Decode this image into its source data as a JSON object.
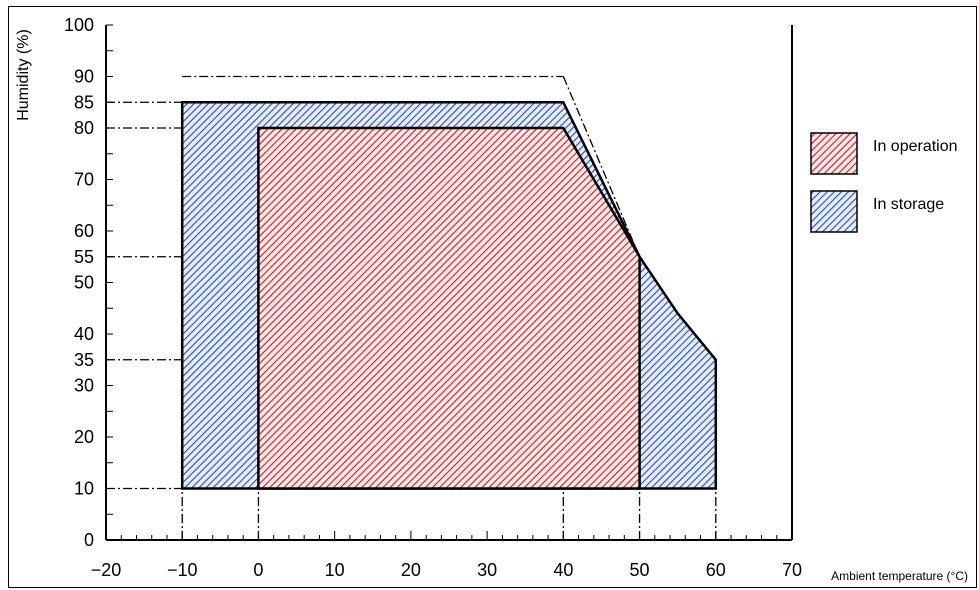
{
  "chart_data": {
    "type": "area",
    "title": "",
    "xlabel": "Ambient temperature (°C)",
    "ylabel": "Humidity (%)",
    "xlim": [
      -20,
      70
    ],
    "ylim": [
      0,
      100
    ],
    "x_ticks": [
      -20,
      -10,
      0,
      10,
      20,
      30,
      40,
      50,
      60,
      70
    ],
    "y_ticks": [
      0,
      10,
      20,
      30,
      35,
      40,
      50,
      55,
      60,
      70,
      80,
      85,
      90,
      100
    ],
    "grid": false,
    "legend_position": "right",
    "series": [
      {
        "name": "In storage",
        "color": "#2b4ea8",
        "points": [
          [
            -10,
            10
          ],
          [
            -10,
            85
          ],
          [
            40,
            85
          ],
          [
            50,
            55
          ],
          [
            55,
            44
          ],
          [
            60,
            35
          ],
          [
            60,
            10
          ]
        ]
      },
      {
        "name": "In operation",
        "color": "#c0202a",
        "points": [
          [
            0,
            10
          ],
          [
            0,
            80
          ],
          [
            40,
            80
          ],
          [
            50,
            55
          ],
          [
            50,
            10
          ]
        ]
      }
    ],
    "reference_lines": [
      {
        "x": [
          -10,
          40
        ],
        "y": 90
      },
      {
        "x": [
          40,
          50
        ],
        "y": [
          90,
          55
        ]
      },
      {
        "x": [
          -20,
          -10
        ],
        "y": 85
      },
      {
        "x": [
          -20,
          0
        ],
        "y": 80
      },
      {
        "x": [
          -20,
          50
        ],
        "y": 55
      },
      {
        "x": [
          -20,
          60
        ],
        "y": 35
      },
      {
        "x": [
          -20,
          -10
        ],
        "y": 10
      },
      {
        "vertical_x": [
          -10,
          0,
          40,
          50,
          60
        ],
        "y": [
          0,
          10
        ]
      }
    ]
  },
  "legend": {
    "operation_label": "In operation",
    "storage_label": "In storage"
  }
}
